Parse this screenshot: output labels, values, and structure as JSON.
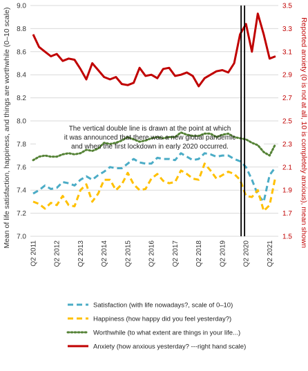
{
  "chart_data": {
    "type": "line",
    "x": [
      "Q2 2011",
      "Q3 2011",
      "Q4 2011",
      "Q1 2012",
      "Q2 2012",
      "Q3 2012",
      "Q4 2012",
      "Q1 2013",
      "Q2 2013",
      "Q3 2013",
      "Q4 2013",
      "Q1 2014",
      "Q2 2014",
      "Q3 2014",
      "Q4 2014",
      "Q1 2015",
      "Q2 2015",
      "Q3 2015",
      "Q4 2015",
      "Q1 2016",
      "Q2 2016",
      "Q3 2016",
      "Q4 2016",
      "Q1 2017",
      "Q2 2017",
      "Q3 2017",
      "Q4 2017",
      "Q1 2018",
      "Q2 2018",
      "Q3 2018",
      "Q4 2018",
      "Q1 2019",
      "Q2 2019",
      "Q3 2019",
      "Q4 2019",
      "Q1 2020",
      "Q2 2020",
      "Q3 2020",
      "Q4 2020",
      "Q1 2021",
      "Q2 2021",
      "Q3 2021"
    ],
    "x_tick_labels": [
      "Q2 2011",
      "Q2 2012",
      "Q2 2013",
      "Q2 2014",
      "Q2 2015",
      "Q2 2016",
      "Q2 2017",
      "Q2 2018",
      "Q2 2019",
      "Q2 2020",
      "Q2 2021"
    ],
    "ylabel": "Mean of life satisfaction, happiness, and things are worthwhile (0–10 scale)",
    "y2label": "Reported anxiety (0 is not at all, 10 is completely anxious), mean shown",
    "ylim": [
      7.0,
      9.0
    ],
    "y2lim": [
      1.5,
      3.5
    ],
    "y_ticks": [
      "7.0",
      "7.2",
      "7.4",
      "7.6",
      "7.8",
      "8.0",
      "8.2",
      "8.4",
      "8.6",
      "8.8",
      "9.0"
    ],
    "y2_ticks": [
      "1.5",
      "1.7",
      "1.9",
      "2.1",
      "2.3",
      "2.5",
      "2.7",
      "2.9",
      "3.1",
      "3.3",
      "3.5"
    ],
    "grid": true,
    "annotation": "The vertical double line is drawn at the point at which it was announced that there was a new global pandemic and when the first lockdown in early 2020 occurred.",
    "event_marker_x": "Q1 2020",
    "series": [
      {
        "name": "Satisfaction (with life nowadays?, scale of 0–10)",
        "axis": "left",
        "color": "#4bacc6",
        "style": "dashed",
        "values": [
          7.37,
          7.4,
          7.44,
          7.41,
          7.42,
          7.47,
          7.46,
          7.44,
          7.49,
          7.52,
          7.49,
          7.53,
          7.56,
          7.6,
          7.59,
          7.59,
          7.63,
          7.67,
          7.64,
          7.63,
          7.63,
          7.68,
          7.67,
          7.67,
          7.66,
          7.72,
          7.69,
          7.66,
          7.67,
          7.72,
          7.71,
          7.69,
          7.7,
          7.7,
          7.67,
          7.65,
          7.6,
          7.49,
          7.36,
          7.3,
          7.53,
          7.6
        ]
      },
      {
        "name": "Happiness (how happy did you feel yesterday?)",
        "axis": "left",
        "color": "#ffc000",
        "style": "dashed",
        "values": [
          7.3,
          7.28,
          7.24,
          7.29,
          7.27,
          7.35,
          7.27,
          7.26,
          7.4,
          7.45,
          7.3,
          7.37,
          7.49,
          7.49,
          7.4,
          7.45,
          7.55,
          7.45,
          7.4,
          7.41,
          7.5,
          7.54,
          7.48,
          7.46,
          7.47,
          7.57,
          7.54,
          7.5,
          7.49,
          7.63,
          7.57,
          7.5,
          7.53,
          7.56,
          7.54,
          7.49,
          7.35,
          7.34,
          7.4,
          7.22,
          7.27,
          7.52
        ]
      },
      {
        "name": "Worthwhile (to what extent are things in your life...)",
        "axis": "left",
        "color": "#548235",
        "style": "dotted",
        "values": [
          7.66,
          7.69,
          7.7,
          7.69,
          7.69,
          7.71,
          7.72,
          7.71,
          7.72,
          7.75,
          7.74,
          7.76,
          7.81,
          7.8,
          7.81,
          7.83,
          7.86,
          7.84,
          7.82,
          7.83,
          7.85,
          7.86,
          7.85,
          7.86,
          7.86,
          7.9,
          7.88,
          7.87,
          7.87,
          7.89,
          7.89,
          7.86,
          7.88,
          7.89,
          7.86,
          7.85,
          7.84,
          7.81,
          7.79,
          7.73,
          7.7,
          7.8
        ]
      },
      {
        "name": "Anxiety (how anxious yesterday? ---right hand scale)",
        "axis": "right",
        "color": "#c00000",
        "style": "solid",
        "values": [
          3.25,
          3.14,
          3.1,
          3.06,
          3.08,
          3.02,
          3.04,
          3.03,
          2.95,
          2.86,
          3.0,
          2.94,
          2.88,
          2.86,
          2.88,
          2.82,
          2.81,
          2.83,
          2.96,
          2.89,
          2.9,
          2.87,
          2.95,
          2.96,
          2.89,
          2.9,
          2.92,
          2.89,
          2.8,
          2.87,
          2.9,
          2.93,
          2.94,
          2.92,
          3.0,
          3.25,
          3.34,
          3.1,
          3.43,
          3.25,
          3.04,
          3.06
        ]
      }
    ]
  }
}
